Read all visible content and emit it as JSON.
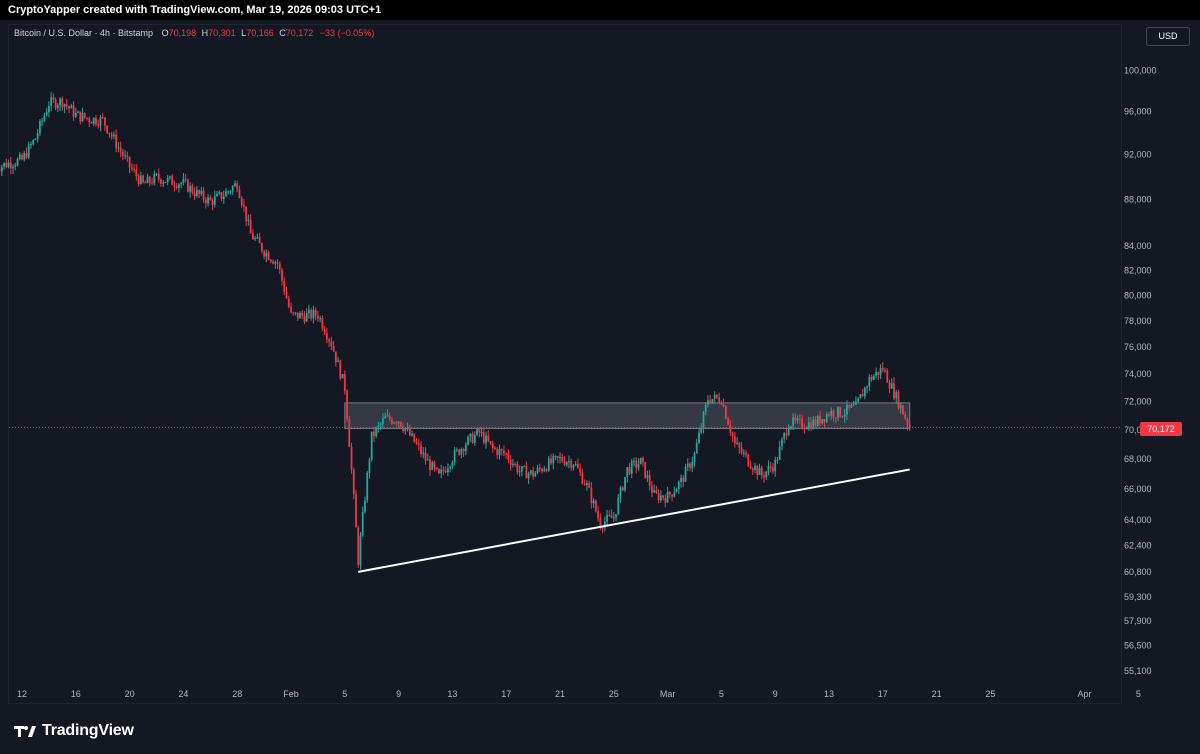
{
  "header": {
    "attribution": "CryptoYapper created with TradingView.com, Mar 19, 2026 09:03 UTC+1"
  },
  "symbol": {
    "name": "Bitcoin / U.S. Dollar · 4h · Bitstamp",
    "o_label": "O",
    "o_value": "70,198",
    "h_label": "H",
    "h_value": "70,301",
    "l_label": "L",
    "l_value": "70,166",
    "c_label": "C",
    "c_value": "70,172",
    "change": "−33 (−0.05%)"
  },
  "currency_button": "USD",
  "last_price_label": "70,172",
  "logo_text": "TradingView",
  "colors": {
    "background": "#131722",
    "up": "#26a69a",
    "down": "#f23645",
    "zone": "#4a4d57",
    "trendline": "#ffffff",
    "last_price_line": "#f23645"
  },
  "chart_data": {
    "type": "candlestick",
    "title": "Bitcoin / U.S. Dollar · 4h · Bitstamp",
    "y_scale": "log",
    "y_ticks": [
      100000,
      96000,
      92000,
      88000,
      84000,
      82000,
      80000,
      78000,
      76000,
      74000,
      72000,
      70000,
      68000,
      66000,
      64000,
      62400,
      60800,
      59300,
      57900,
      56500,
      55100
    ],
    "x_ticks": [
      "12",
      "16",
      "20",
      "24",
      "28",
      "Feb",
      "5",
      "9",
      "13",
      "17",
      "21",
      "25",
      "Mar",
      "5",
      "9",
      "13",
      "17",
      "21",
      "25",
      "Apr",
      "5"
    ],
    "x_tick_dates": [
      "Jan 12",
      "Jan 16",
      "Jan 20",
      "Jan 24",
      "Jan 28",
      "Feb 1",
      "Feb 5",
      "Feb 9",
      "Feb 13",
      "Feb 17",
      "Feb 21",
      "Feb 25",
      "Mar 1",
      "Mar 5",
      "Mar 9",
      "Mar 13",
      "Mar 17",
      "Mar 21",
      "Mar 25",
      "Apr 1",
      "Apr 5"
    ],
    "close_path": [
      [
        "Jan 10",
        90800
      ],
      [
        "Jan 11",
        91200
      ],
      [
        "Jan 12",
        91500
      ],
      [
        "Jan 13",
        93500
      ],
      [
        "Jan 14",
        96800
      ],
      [
        "Jan 15",
        97000
      ],
      [
        "Jan 16",
        95700
      ],
      [
        "Jan 17",
        95300
      ],
      [
        "Jan 18",
        95200
      ],
      [
        "Jan 19",
        93000
      ],
      [
        "Jan 20",
        90900
      ],
      [
        "Jan 21",
        89300
      ],
      [
        "Jan 22",
        89900
      ],
      [
        "Jan 23",
        89600
      ],
      [
        "Jan 24",
        89400
      ],
      [
        "Jan 25",
        88500
      ],
      [
        "Jan 26",
        87800
      ],
      [
        "Jan 27",
        88400
      ],
      [
        "Jan 28",
        89400
      ],
      [
        "Jan 29",
        85000
      ],
      [
        "Jan 30",
        83600
      ],
      [
        "Jan 31",
        82600
      ],
      [
        "Feb 1",
        78400
      ],
      [
        "Feb 2",
        78400
      ],
      [
        "Feb 3",
        78500
      ],
      [
        "Feb 4",
        76300
      ],
      [
        "Feb 5",
        73000
      ],
      [
        "Feb 6",
        61500
      ],
      [
        "Feb 7",
        69500
      ],
      [
        "Feb 8",
        70800
      ],
      [
        "Feb 9",
        70700
      ],
      [
        "Feb 10",
        69400
      ],
      [
        "Feb 11",
        68000
      ],
      [
        "Feb 12",
        66800
      ],
      [
        "Feb 13",
        68100
      ],
      [
        "Feb 14",
        69100
      ],
      [
        "Feb 15",
        69800
      ],
      [
        "Feb 16",
        68700
      ],
      [
        "Feb 17",
        68300
      ],
      [
        "Feb 18",
        67200
      ],
      [
        "Feb 19",
        67000
      ],
      [
        "Feb 20",
        67600
      ],
      [
        "Feb 21",
        68000
      ],
      [
        "Feb 22",
        67800
      ],
      [
        "Feb 23",
        66200
      ],
      [
        "Feb 24",
        63800
      ],
      [
        "Feb 25",
        64200
      ],
      [
        "Feb 26",
        67300
      ],
      [
        "Feb 27",
        67800
      ],
      [
        "Feb 28",
        65600
      ],
      [
        "Mar 1",
        65500
      ],
      [
        "Mar 2",
        66500
      ],
      [
        "Mar 3",
        68300
      ],
      [
        "Mar 4",
        72200
      ],
      [
        "Mar 5",
        72200
      ],
      [
        "Mar 6",
        69000
      ],
      [
        "Mar 7",
        67900
      ],
      [
        "Mar 8",
        66900
      ],
      [
        "Mar 9",
        67700
      ],
      [
        "Mar 10",
        70500
      ],
      [
        "Mar 11",
        70400
      ],
      [
        "Mar 12",
        70500
      ],
      [
        "Mar 13",
        71200
      ],
      [
        "Mar 14",
        71200
      ],
      [
        "Mar 15",
        71600
      ],
      [
        "Mar 16",
        73600
      ],
      [
        "Mar 17",
        74400
      ],
      [
        "Mar 18",
        72300
      ],
      [
        "Mar 19",
        70172
      ]
    ],
    "last_price": 70172,
    "resistance_zone": {
      "start": "Feb 5",
      "end": "Mar 19",
      "low": 70100,
      "high": 71900
    },
    "trendline": {
      "start": [
        "Feb 6",
        60800
      ],
      "end": [
        "Mar 19",
        67300
      ]
    }
  }
}
